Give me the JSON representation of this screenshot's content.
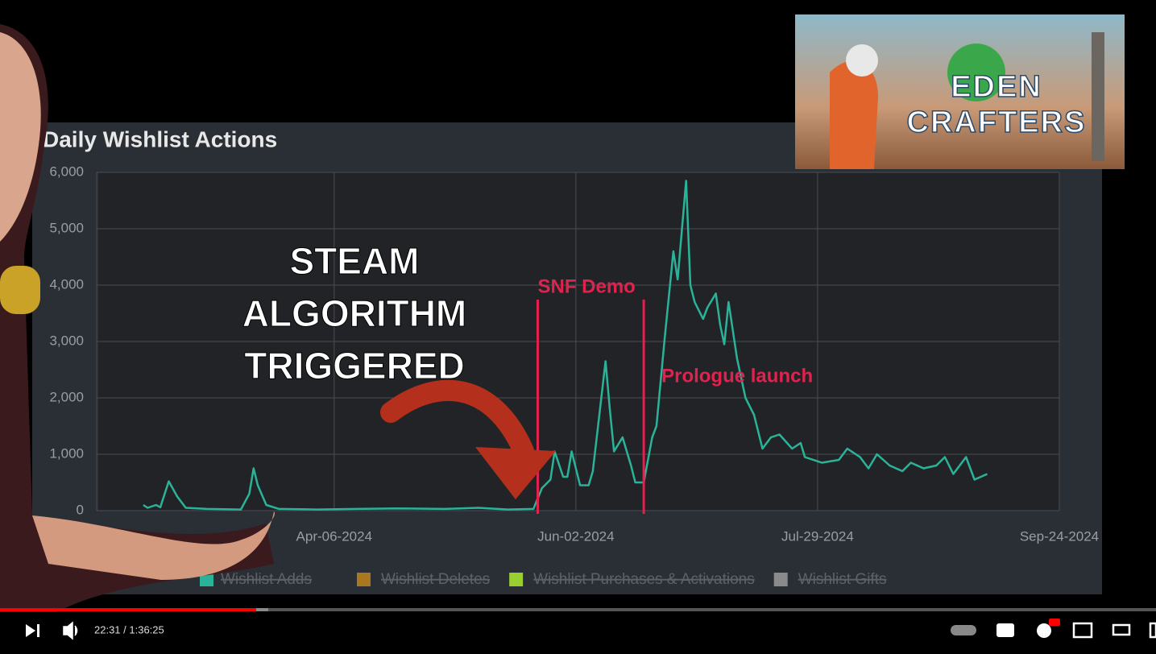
{
  "chart_data": {
    "type": "line",
    "title": "Daily Wishlist Actions",
    "xlim": [
      "2024-02-10",
      "2024-09-24"
    ],
    "xticks": [
      {
        "value": "2024-04-06",
        "label": "Apr-06-2024"
      },
      {
        "value": "2024-06-02",
        "label": "Jun-02-2024"
      },
      {
        "value": "2024-07-29",
        "label": "Jul-29-2024"
      },
      {
        "value": "2024-09-24",
        "label": "Sep-24-2024"
      }
    ],
    "ylim": [
      0,
      6000
    ],
    "yticks": [
      0,
      {
        "value": 1000,
        "label": "1,000"
      },
      {
        "value": 2000,
        "label": "2,000"
      },
      {
        "value": 3000,
        "label": "3,000"
      },
      {
        "value": 4000,
        "label": "4,000"
      },
      {
        "value": 5000,
        "label": "5,000"
      },
      {
        "value": 6000,
        "label": "6,000"
      }
    ],
    "grid": true,
    "series": [
      {
        "name": "Wishlist Adds",
        "color": "#2bb39a",
        "x": [
          "2024-02-21",
          "2024-02-22",
          "2024-02-24",
          "2024-02-25",
          "2024-02-27",
          "2024-02-29",
          "2024-03-02",
          "2024-03-07",
          "2024-03-15",
          "2024-03-17",
          "2024-03-18",
          "2024-03-19",
          "2024-03-21",
          "2024-03-24",
          "2024-04-02",
          "2024-04-11",
          "2024-04-21",
          "2024-05-02",
          "2024-05-10",
          "2024-05-17",
          "2024-05-23",
          "2024-05-25",
          "2024-05-27",
          "2024-05-28",
          "2024-05-30",
          "2024-05-31",
          "2024-06-01",
          "2024-06-03",
          "2024-06-05",
          "2024-06-06",
          "2024-06-09",
          "2024-06-10",
          "2024-06-11",
          "2024-06-13",
          "2024-06-15",
          "2024-06-16",
          "2024-06-18",
          "2024-06-20",
          "2024-06-21",
          "2024-06-23",
          "2024-06-25",
          "2024-06-26",
          "2024-06-28",
          "2024-06-29",
          "2024-06-30",
          "2024-07-02",
          "2024-07-03",
          "2024-07-05",
          "2024-07-06",
          "2024-07-07",
          "2024-07-08",
          "2024-07-10",
          "2024-07-12",
          "2024-07-14",
          "2024-07-16",
          "2024-07-18",
          "2024-07-20",
          "2024-07-23",
          "2024-07-25",
          "2024-07-26",
          "2024-07-30",
          "2024-08-03",
          "2024-08-05",
          "2024-08-08",
          "2024-08-10",
          "2024-08-12",
          "2024-08-15",
          "2024-08-18",
          "2024-08-20",
          "2024-08-23",
          "2024-08-26",
          "2024-08-28",
          "2024-08-30",
          "2024-09-02",
          "2024-09-04",
          "2024-09-07"
        ],
        "values": [
          100,
          50,
          100,
          60,
          520,
          250,
          50,
          30,
          20,
          300,
          750,
          450,
          100,
          30,
          20,
          30,
          40,
          30,
          50,
          20,
          30,
          400,
          550,
          1050,
          600,
          600,
          1050,
          450,
          450,
          700,
          2650,
          1800,
          1050,
          1300,
          800,
          500,
          500,
          1300,
          1500,
          3100,
          4600,
          4100,
          5850,
          4000,
          3700,
          3400,
          3600,
          3850,
          3300,
          2950,
          3700,
          2700,
          2000,
          1700,
          1100,
          1300,
          1350,
          1100,
          1200,
          950,
          850,
          900,
          1100,
          950,
          750,
          1000,
          800,
          700,
          850,
          750,
          800,
          950,
          650,
          950,
          550,
          650
        ]
      }
    ],
    "inactive_legend": [
      {
        "name": "Wishlist Deletes",
        "color": "#a9771f"
      },
      {
        "name": "Wishlist Purchases & Activations",
        "color": "#9acd32"
      },
      {
        "name": "Wishlist Gifts",
        "color": "#8a8a8a"
      }
    ],
    "annotations": [
      {
        "text": "SNF Demo",
        "x": "2024-05-24",
        "color": "#e0234e"
      },
      {
        "text": "Prologue launch",
        "x": "2024-06-18",
        "color": "#e0234e"
      }
    ]
  },
  "overlay": {
    "lines": [
      "STEAM",
      "ALGORITHM",
      "TRIGGERED"
    ]
  },
  "thumbnail": {
    "lines": [
      "EDEN",
      "CRAFTERS"
    ]
  },
  "player": {
    "time": "22:31 / 1:36:25"
  }
}
